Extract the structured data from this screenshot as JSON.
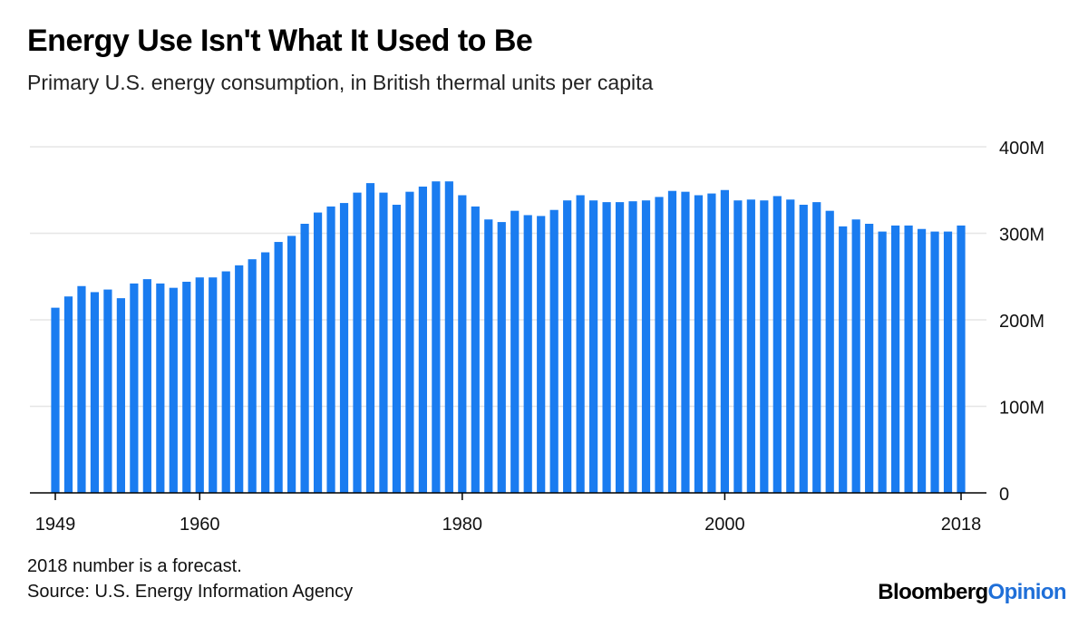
{
  "title": "Energy Use Isn't What It Used to Be",
  "subtitle": "Primary U.S. energy consumption, in British thermal units per capita",
  "footnote": "2018 number is a forecast.",
  "source": "Source: U.S. Energy Information Agency",
  "brand": {
    "part1": "Bloomberg",
    "part2": "Opinion"
  },
  "colors": {
    "bar": "#1a7cf0",
    "grid": "#e6e6e6",
    "brand_accent": "#1f6fd8"
  },
  "chart_data": {
    "type": "bar",
    "title": "Energy Use Isn't What It Used to Be",
    "ylabel": "",
    "xlabel": "",
    "ylim": [
      0,
      400000000
    ],
    "grid": true,
    "y_axis_position": "right",
    "y_ticks": [
      0,
      100000000,
      200000000,
      300000000,
      400000000
    ],
    "y_tick_labels": [
      "0",
      "100M",
      "200M",
      "300M",
      "400M"
    ],
    "x_tick_labels": [
      "1949",
      "1960",
      "1980",
      "2000",
      "2018"
    ],
    "x_tick_years": [
      1949,
      1960,
      1980,
      2000,
      2018
    ],
    "categories": [
      1949,
      1950,
      1951,
      1952,
      1953,
      1954,
      1955,
      1956,
      1957,
      1958,
      1959,
      1960,
      1961,
      1962,
      1963,
      1964,
      1965,
      1966,
      1967,
      1968,
      1969,
      1970,
      1971,
      1972,
      1973,
      1974,
      1975,
      1976,
      1977,
      1978,
      1979,
      1980,
      1981,
      1982,
      1983,
      1984,
      1985,
      1986,
      1987,
      1988,
      1989,
      1990,
      1991,
      1992,
      1993,
      1994,
      1995,
      1996,
      1997,
      1998,
      1999,
      2000,
      2001,
      2002,
      2003,
      2004,
      2005,
      2006,
      2007,
      2008,
      2009,
      2010,
      2011,
      2012,
      2013,
      2014,
      2015,
      2016,
      2017,
      2018
    ],
    "values": [
      214000000,
      227000000,
      239000000,
      232000000,
      235000000,
      225000000,
      242000000,
      247000000,
      242000000,
      237000000,
      244000000,
      249000000,
      249000000,
      256000000,
      263000000,
      270000000,
      278000000,
      290000000,
      297000000,
      311000000,
      324000000,
      331000000,
      335000000,
      347000000,
      358000000,
      347000000,
      333000000,
      348000000,
      354000000,
      360000000,
      360000000,
      344000000,
      331000000,
      316000000,
      313000000,
      326000000,
      321000000,
      320000000,
      327000000,
      338000000,
      344000000,
      338000000,
      336000000,
      336000000,
      337000000,
      338000000,
      342000000,
      349000000,
      348000000,
      344000000,
      346000000,
      350000000,
      338000000,
      339000000,
      338000000,
      343000000,
      339000000,
      333000000,
      336000000,
      326000000,
      308000000,
      316000000,
      311000000,
      302000000,
      309000000,
      309000000,
      305000000,
      302000000,
      302000000,
      309000000
    ]
  }
}
